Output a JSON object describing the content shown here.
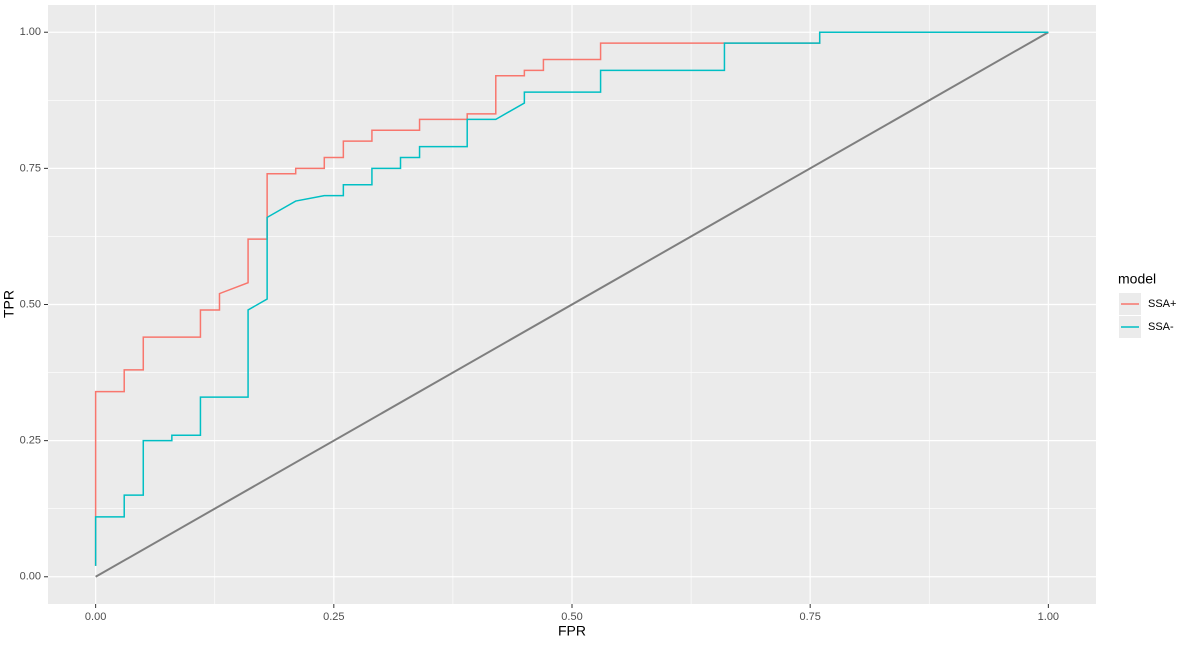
{
  "chart_data": {
    "type": "line",
    "x_label": "FPR",
    "y_label": "TPR",
    "legend_title": "model",
    "xlim": [
      -0.05,
      1.05
    ],
    "ylim": [
      -0.05,
      1.05
    ],
    "xticks": [
      {
        "value": 0,
        "label": "0.00"
      },
      {
        "value": 0.25,
        "label": "0.25"
      },
      {
        "value": 0.5,
        "label": "0.50"
      },
      {
        "value": 0.75,
        "label": "0.75"
      },
      {
        "value": 1,
        "label": "1.00"
      }
    ],
    "yticks": [
      {
        "value": 0,
        "label": "0.00"
      },
      {
        "value": 0.25,
        "label": "0.25"
      },
      {
        "value": 0.5,
        "label": "0.50"
      },
      {
        "value": 0.75,
        "label": "0.75"
      },
      {
        "value": 1,
        "label": "1.00"
      }
    ],
    "grid": true,
    "legend": "right",
    "reference_line": {
      "x": [
        0,
        1
      ],
      "y": [
        0,
        1
      ],
      "color": "#7f7f7f"
    },
    "series": [
      {
        "name": "SSA+",
        "color": "#F8766D",
        "x": [
          0,
          0,
          0.03,
          0.03,
          0.05,
          0.05,
          0.11,
          0.11,
          0.13,
          0.13,
          0.16,
          0.16,
          0.18,
          0.18,
          0.21,
          0.21,
          0.24,
          0.24,
          0.26,
          0.26,
          0.29,
          0.29,
          0.34,
          0.34,
          0.39,
          0.39,
          0.42,
          0.42,
          0.45,
          0.45,
          0.47,
          0.47,
          0.53,
          0.53,
          0.76,
          0.76,
          1
        ],
        "values": [
          0.02,
          0.34,
          0.34,
          0.38,
          0.38,
          0.44,
          0.44,
          0.49,
          0.49,
          0.52,
          0.54,
          0.62,
          0.62,
          0.74,
          0.74,
          0.75,
          0.75,
          0.77,
          0.77,
          0.8,
          0.8,
          0.82,
          0.82,
          0.84,
          0.84,
          0.85,
          0.85,
          0.92,
          0.92,
          0.93,
          0.93,
          0.95,
          0.95,
          0.98,
          0.98,
          1,
          1
        ]
      },
      {
        "name": "SSA-",
        "color": "#00BFC4",
        "x": [
          0,
          0,
          0.03,
          0.03,
          0.05,
          0.05,
          0.08,
          0.08,
          0.11,
          0.11,
          0.16,
          0.16,
          0.18,
          0.18,
          0.21,
          0.24,
          0.26,
          0.26,
          0.29,
          0.29,
          0.32,
          0.32,
          0.34,
          0.34,
          0.39,
          0.39,
          0.42,
          0.45,
          0.45,
          0.53,
          0.53,
          0.66,
          0.66,
          0.76,
          0.76,
          1
        ],
        "values": [
          0.02,
          0.11,
          0.11,
          0.15,
          0.15,
          0.25,
          0.25,
          0.26,
          0.26,
          0.33,
          0.33,
          0.49,
          0.51,
          0.66,
          0.69,
          0.7,
          0.7,
          0.72,
          0.72,
          0.75,
          0.75,
          0.77,
          0.77,
          0.79,
          0.79,
          0.84,
          0.84,
          0.87,
          0.89,
          0.89,
          0.93,
          0.93,
          0.98,
          0.98,
          1,
          1
        ]
      }
    ]
  }
}
